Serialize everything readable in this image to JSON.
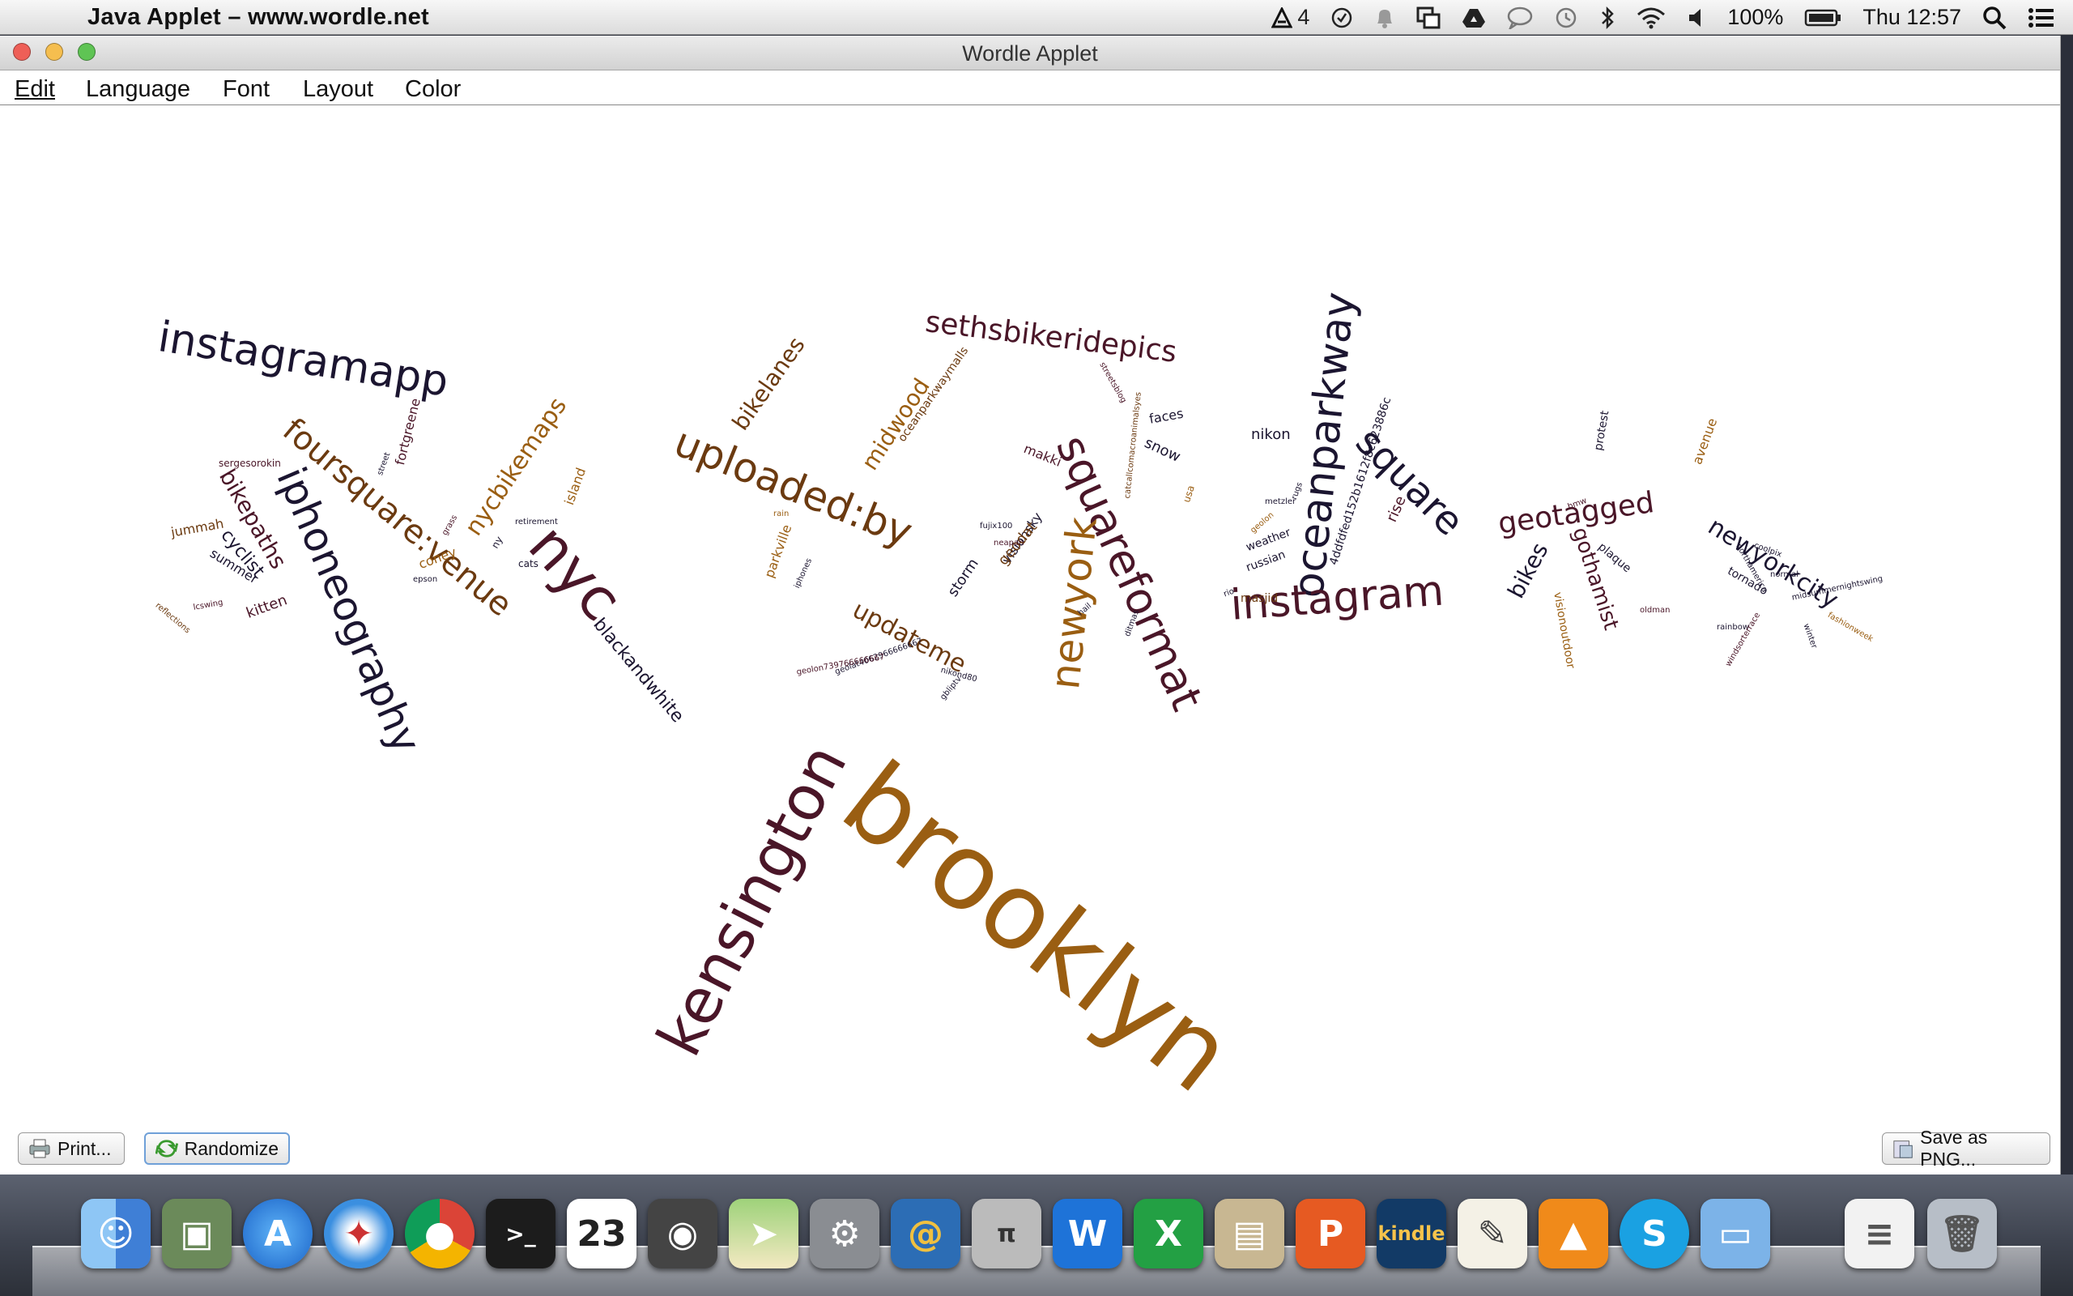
{
  "menubar": {
    "apple_icon": "apple-logo",
    "app_title": "Java Applet – www.wordle.net",
    "adobe_count": "4",
    "battery": "100%",
    "clock": "Thu 12:57"
  },
  "window": {
    "title": "Wordle Applet",
    "menu": [
      "Edit",
      "Language",
      "Font",
      "Layout",
      "Color"
    ]
  },
  "buttons": {
    "print": "Print...",
    "randomize": "Randomize",
    "save_png": "Save as PNG..."
  },
  "colors": {
    "dark_navy": "#1b1530",
    "maroon": "#4a1628",
    "brown": "#6b3a10",
    "gold": "#9a5e12"
  },
  "words": [
    {
      "t": "brooklyn",
      "c": "gold"
    },
    {
      "t": "kensington",
      "c": "maroon"
    },
    {
      "t": "oceanparkway",
      "c": "dark_navy"
    },
    {
      "t": "squareformat",
      "c": "maroon"
    },
    {
      "t": "instagramapp",
      "c": "dark_navy"
    },
    {
      "t": "iphoneography",
      "c": "dark_navy"
    },
    {
      "t": "nyc",
      "c": "maroon"
    },
    {
      "t": "foursquare:venue",
      "c": "brown"
    },
    {
      "t": "uploaded:by",
      "c": "brown"
    },
    {
      "t": "newyork",
      "c": "gold"
    },
    {
      "t": "instagram",
      "c": "maroon"
    },
    {
      "t": "square",
      "c": "dark_navy"
    },
    {
      "t": "sethsbikeridepics",
      "c": "maroon"
    },
    {
      "t": "geotagged",
      "c": "maroon"
    },
    {
      "t": "nycbikemaps",
      "c": "gold"
    },
    {
      "t": "bikelanes",
      "c": "brown"
    },
    {
      "t": "midwood",
      "c": "gold"
    },
    {
      "t": "updateme",
      "c": "brown"
    },
    {
      "t": "bikepaths",
      "c": "maroon"
    },
    {
      "t": "newyorkcity",
      "c": "dark_navy"
    },
    {
      "t": "gothamist",
      "c": "maroon"
    },
    {
      "t": "bikes",
      "c": "dark_navy"
    },
    {
      "t": "blackandwhite",
      "c": "dark_navy"
    },
    {
      "t": "cyclist",
      "c": "dark_navy"
    },
    {
      "t": "kitten",
      "c": "maroon"
    },
    {
      "t": "summer",
      "c": "dark_navy"
    },
    {
      "t": "jummah",
      "c": "brown"
    },
    {
      "t": "sergesorokin",
      "c": "maroon"
    },
    {
      "t": "nikon",
      "c": "dark_navy"
    },
    {
      "t": "faces",
      "c": "dark_navy"
    },
    {
      "t": "snow",
      "c": "dark_navy"
    },
    {
      "t": "storm",
      "c": "dark_navy"
    },
    {
      "t": "visionsky",
      "c": "dark_navy"
    },
    {
      "t": "makki",
      "c": "maroon"
    },
    {
      "t": "parkville",
      "c": "gold"
    },
    {
      "t": "geodat",
      "c": "brown"
    },
    {
      "t": "rise",
      "c": "maroon"
    },
    {
      "t": "protest",
      "c": "dark_navy"
    },
    {
      "t": "avenue",
      "c": "gold"
    },
    {
      "t": "plaque",
      "c": "dark_navy"
    },
    {
      "t": "tornado",
      "c": "dark_navy"
    },
    {
      "t": "visionoutdoor",
      "c": "gold"
    },
    {
      "t": "weather",
      "c": "dark_navy"
    },
    {
      "t": "russian",
      "c": "dark_navy"
    },
    {
      "t": "masjid",
      "c": "brown"
    },
    {
      "t": "coney",
      "c": "gold"
    },
    {
      "t": "island",
      "c": "gold"
    },
    {
      "t": "fortgreene",
      "c": "maroon"
    },
    {
      "t": "street",
      "c": "dark_navy"
    },
    {
      "t": "4ddfdfed152b1612f8c623886c",
      "c": "dark_navy"
    },
    {
      "t": "oceanparkwaymalls",
      "c": "brown"
    },
    {
      "t": "catcallcomacroanimalsyes",
      "c": "brown"
    },
    {
      "t": "streetsblog",
      "c": "maroon"
    },
    {
      "t": "usa",
      "c": "gold"
    },
    {
      "t": "geolon",
      "c": "gold"
    },
    {
      "t": "metzler",
      "c": "dark_navy"
    },
    {
      "t": "rugs",
      "c": "dark_navy"
    },
    {
      "t": "cats",
      "c": "dark_navy"
    },
    {
      "t": "ny",
      "c": "dark_navy"
    },
    {
      "t": "bmw",
      "c": "maroon"
    },
    {
      "t": "coolpix",
      "c": "dark_navy"
    },
    {
      "t": "normal",
      "c": "dark_navy"
    },
    {
      "t": "midsummernightswing",
      "c": "dark_navy"
    },
    {
      "t": "retirement",
      "c": "dark_navy"
    },
    {
      "t": "grass",
      "c": "maroon"
    },
    {
      "t": "epson",
      "c": "dark_navy"
    },
    {
      "t": "lcswing",
      "c": "maroon"
    },
    {
      "t": "reflections",
      "c": "brown"
    },
    {
      "t": "geolat4062966666667",
      "c": "dark_navy"
    },
    {
      "t": "geolon739766666667",
      "c": "maroon"
    },
    {
      "t": "nikond80",
      "c": "dark_navy"
    },
    {
      "t": "rain",
      "c": "gold"
    },
    {
      "t": "gbliptv",
      "c": "dark_navy"
    },
    {
      "t": "ditmas",
      "c": "dark_navy"
    },
    {
      "t": "hail",
      "c": "dark_navy"
    },
    {
      "t": "rio",
      "c": "dark_navy"
    },
    {
      "t": "northamerica",
      "c": "dark_navy"
    },
    {
      "t": "rainbow",
      "c": "dark_navy"
    },
    {
      "t": "windsorterrace",
      "c": "maroon"
    },
    {
      "t": "fashionweek",
      "c": "gold"
    },
    {
      "t": "fujix100",
      "c": "dark_navy"
    },
    {
      "t": "neapan",
      "c": "maroon"
    },
    {
      "t": "oldman",
      "c": "maroon"
    },
    {
      "t": "winter",
      "c": "dark_navy"
    },
    {
      "t": "iphones",
      "c": "dark_navy"
    }
  ]
}
